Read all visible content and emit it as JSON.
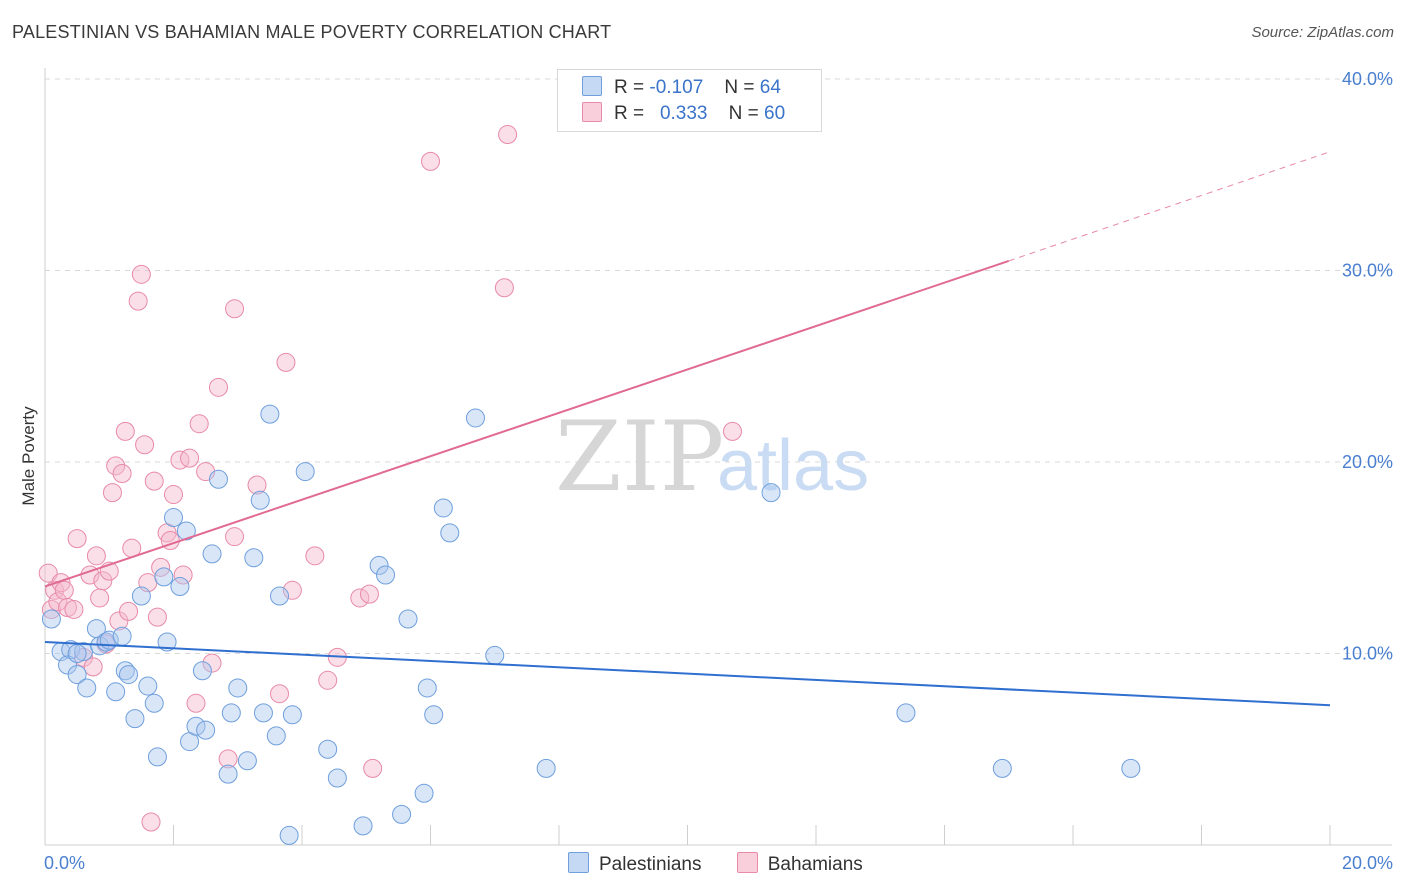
{
  "title": "PALESTINIAN VS BAHAMIAN MALE POVERTY CORRELATION CHART",
  "source": "Source: ZipAtlas.com",
  "legend": {
    "rows": [
      {
        "r_label": "R =",
        "r_value": "-0.107",
        "n_label": "N =",
        "n_value": "64"
      },
      {
        "r_label": "R =",
        "r_value": "0.333",
        "n_label": "N =",
        "n_value": "60"
      }
    ]
  },
  "bottom_legend": [
    "Palestinians",
    "Bahamians"
  ],
  "colors": {
    "blue_fill": "#aac8ef",
    "blue_stroke": "#6f9fdc",
    "blue_line": "#2f6fcf",
    "pink_fill": "#f5b9cc",
    "pink_stroke": "#e88aa8",
    "pink_line": "#e16a94",
    "tick": "#4a7fd0",
    "grid": "#d9d9d9"
  },
  "chart_data": {
    "type": "scatter",
    "title": "PALESTINIAN VS BAHAMIAN MALE POVERTY CORRELATION CHART",
    "xlabel": "",
    "ylabel": "Male Poverty",
    "xlim": [
      0,
      20
    ],
    "ylim": [
      0,
      40
    ],
    "x_tick_labels": [
      "0.0%",
      "20.0%"
    ],
    "y_ticks": [
      10,
      20,
      30,
      40
    ],
    "y_tick_labels": [
      "10.0%",
      "20.0%",
      "30.0%",
      "40.0%"
    ],
    "grid": true,
    "legend_position": "top-center",
    "watermark": "ZIPatlas",
    "series": [
      {
        "name": "Palestinians",
        "r": -0.107,
        "n": 64,
        "trend": {
          "x": [
            0,
            20
          ],
          "y": [
            10.6,
            7.3
          ]
        },
        "points": [
          [
            0.1,
            11.8
          ],
          [
            0.25,
            10.1
          ],
          [
            0.4,
            10.2
          ],
          [
            0.35,
            9.4
          ],
          [
            0.5,
            8.9
          ],
          [
            0.6,
            10.1
          ],
          [
            0.65,
            8.2
          ],
          [
            0.8,
            11.3
          ],
          [
            0.85,
            10.4
          ],
          [
            0.95,
            10.6
          ],
          [
            1.0,
            10.7
          ],
          [
            1.1,
            8.0
          ],
          [
            1.2,
            10.9
          ],
          [
            1.25,
            9.1
          ],
          [
            1.3,
            8.9
          ],
          [
            1.4,
            6.6
          ],
          [
            1.5,
            13.0
          ],
          [
            1.6,
            8.3
          ],
          [
            1.7,
            7.4
          ],
          [
            1.75,
            4.6
          ],
          [
            1.85,
            14.0
          ],
          [
            1.9,
            10.6
          ],
          [
            2.0,
            17.1
          ],
          [
            2.1,
            13.5
          ],
          [
            2.2,
            16.4
          ],
          [
            2.25,
            5.4
          ],
          [
            2.35,
            6.2
          ],
          [
            2.45,
            9.1
          ],
          [
            2.5,
            6.0
          ],
          [
            2.6,
            15.2
          ],
          [
            2.7,
            19.1
          ],
          [
            2.85,
            3.7
          ],
          [
            2.9,
            6.9
          ],
          [
            3.0,
            8.2
          ],
          [
            3.15,
            4.4
          ],
          [
            3.25,
            15.0
          ],
          [
            3.35,
            18.0
          ],
          [
            3.4,
            6.9
          ],
          [
            3.5,
            22.5
          ],
          [
            3.6,
            5.7
          ],
          [
            3.65,
            13.0
          ],
          [
            3.8,
            0.5
          ],
          [
            3.85,
            6.8
          ],
          [
            4.05,
            19.5
          ],
          [
            4.4,
            5.0
          ],
          [
            4.55,
            3.5
          ],
          [
            4.95,
            1.0
          ],
          [
            5.2,
            14.6
          ],
          [
            5.3,
            14.1
          ],
          [
            5.55,
            1.6
          ],
          [
            5.65,
            11.8
          ],
          [
            5.9,
            2.7
          ],
          [
            5.95,
            8.2
          ],
          [
            6.05,
            6.8
          ],
          [
            6.2,
            17.6
          ],
          [
            6.3,
            16.3
          ],
          [
            6.7,
            22.3
          ],
          [
            7.0,
            9.9
          ],
          [
            7.8,
            4.0
          ],
          [
            11.3,
            18.4
          ],
          [
            13.4,
            6.9
          ],
          [
            14.9,
            4.0
          ],
          [
            16.9,
            4.0
          ],
          [
            0.5,
            10.0
          ]
        ]
      },
      {
        "name": "Bahamians",
        "r": 0.333,
        "n": 60,
        "trend": {
          "x": [
            0,
            15
          ],
          "y": [
            13.5,
            30.5
          ]
        },
        "trend_dashed": {
          "x": [
            15,
            20
          ],
          "y": [
            30.5,
            36.2
          ]
        },
        "points": [
          [
            0.05,
            14.2
          ],
          [
            0.1,
            12.3
          ],
          [
            0.15,
            13.3
          ],
          [
            0.2,
            12.7
          ],
          [
            0.25,
            13.7
          ],
          [
            0.3,
            13.3
          ],
          [
            0.35,
            12.4
          ],
          [
            0.45,
            12.3
          ],
          [
            0.5,
            16.0
          ],
          [
            0.6,
            9.8
          ],
          [
            0.7,
            14.1
          ],
          [
            0.75,
            9.3
          ],
          [
            0.8,
            15.1
          ],
          [
            0.85,
            12.9
          ],
          [
            0.9,
            13.8
          ],
          [
            0.95,
            10.5
          ],
          [
            1.0,
            14.3
          ],
          [
            1.05,
            18.4
          ],
          [
            1.1,
            19.8
          ],
          [
            1.15,
            11.7
          ],
          [
            1.2,
            19.4
          ],
          [
            1.25,
            21.6
          ],
          [
            1.3,
            12.2
          ],
          [
            1.35,
            15.5
          ],
          [
            1.45,
            28.4
          ],
          [
            1.5,
            29.8
          ],
          [
            1.55,
            20.9
          ],
          [
            1.6,
            13.7
          ],
          [
            1.65,
            1.2
          ],
          [
            1.7,
            19.0
          ],
          [
            1.75,
            11.9
          ],
          [
            1.8,
            14.5
          ],
          [
            1.9,
            16.3
          ],
          [
            1.95,
            15.9
          ],
          [
            2.0,
            18.3
          ],
          [
            2.1,
            20.1
          ],
          [
            2.15,
            14.1
          ],
          [
            2.25,
            20.2
          ],
          [
            2.35,
            7.4
          ],
          [
            2.4,
            22.0
          ],
          [
            2.5,
            19.5
          ],
          [
            2.6,
            9.5
          ],
          [
            2.7,
            23.9
          ],
          [
            2.85,
            4.5
          ],
          [
            2.95,
            28.0
          ],
          [
            2.95,
            16.1
          ],
          [
            3.3,
            18.8
          ],
          [
            3.65,
            7.9
          ],
          [
            3.75,
            25.2
          ],
          [
            3.85,
            13.3
          ],
          [
            4.2,
            15.1
          ],
          [
            4.4,
            8.6
          ],
          [
            4.55,
            9.8
          ],
          [
            4.9,
            12.9
          ],
          [
            5.05,
            13.1
          ],
          [
            5.1,
            4.0
          ],
          [
            6.0,
            35.7
          ],
          [
            7.15,
            29.1
          ],
          [
            7.2,
            37.1
          ],
          [
            10.7,
            21.6
          ]
        ]
      }
    ]
  }
}
